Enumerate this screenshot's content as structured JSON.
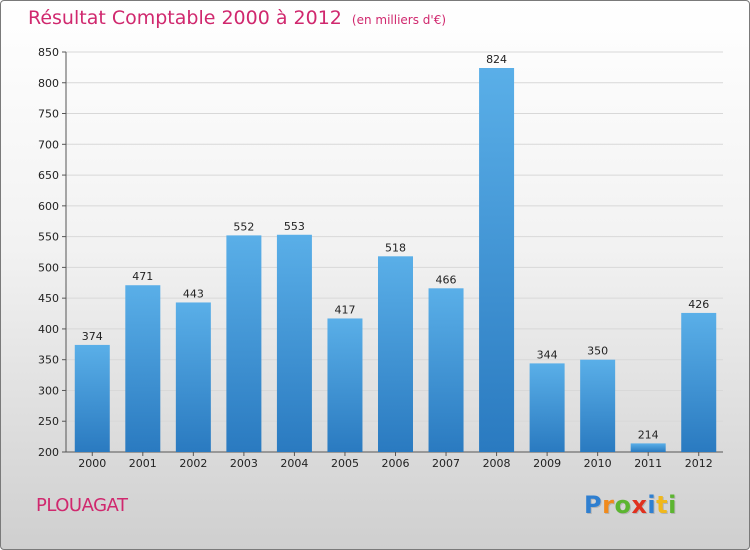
{
  "title": "Résultat Comptable 2000 à 2012",
  "subtitle": "(en milliers d'€)",
  "commune": "PLOUAGAT",
  "brand": {
    "letters": [
      {
        "ch": "P",
        "color": "#2f7fd0"
      },
      {
        "ch": "r",
        "color": "#f08a1c"
      },
      {
        "ch": "o",
        "color": "#5cb531"
      },
      {
        "ch": "x",
        "color": "#e0301e"
      },
      {
        "ch": "i",
        "color": "#2f7fd0"
      },
      {
        "ch": "t",
        "color": "#f0b81c"
      },
      {
        "ch": "i",
        "color": "#5cb531"
      }
    ]
  },
  "chart_data": {
    "type": "bar",
    "categories": [
      "2000",
      "2001",
      "2002",
      "2003",
      "2004",
      "2005",
      "2006",
      "2007",
      "2008",
      "2009",
      "2010",
      "2011",
      "2012"
    ],
    "values": [
      374,
      471,
      443,
      552,
      553,
      417,
      518,
      466,
      824,
      344,
      350,
      214,
      426
    ],
    "ylim": [
      200,
      850
    ],
    "yticks": [
      200,
      250,
      300,
      350,
      400,
      450,
      500,
      550,
      600,
      650,
      700,
      750,
      800,
      850
    ],
    "grid": true,
    "bar_color_top": "#5aafe8",
    "bar_color_bottom": "#2a7ac0"
  }
}
